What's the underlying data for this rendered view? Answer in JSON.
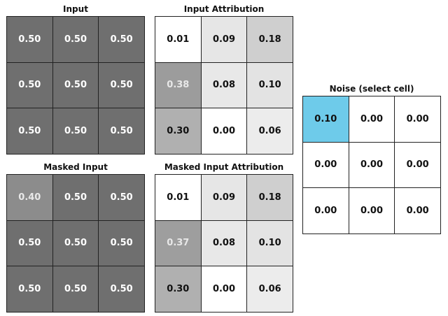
{
  "panels": {
    "input": {
      "title": "Input",
      "cells": [
        {
          "value": "0.50",
          "bg": "#6f6f6f",
          "fg": "#ffffff"
        },
        {
          "value": "0.50",
          "bg": "#6f6f6f",
          "fg": "#ffffff"
        },
        {
          "value": "0.50",
          "bg": "#6f6f6f",
          "fg": "#ffffff"
        },
        {
          "value": "0.50",
          "bg": "#6f6f6f",
          "fg": "#ffffff"
        },
        {
          "value": "0.50",
          "bg": "#6f6f6f",
          "fg": "#ffffff"
        },
        {
          "value": "0.50",
          "bg": "#6f6f6f",
          "fg": "#ffffff"
        },
        {
          "value": "0.50",
          "bg": "#6f6f6f",
          "fg": "#ffffff"
        },
        {
          "value": "0.50",
          "bg": "#6f6f6f",
          "fg": "#ffffff"
        },
        {
          "value": "0.50",
          "bg": "#6f6f6f",
          "fg": "#ffffff"
        }
      ]
    },
    "input_attribution": {
      "title": "Input Attribution",
      "cells": [
        {
          "value": "0.01",
          "bg": "#ffffff",
          "fg": "#111111"
        },
        {
          "value": "0.09",
          "bg": "#e6e6e6",
          "fg": "#111111"
        },
        {
          "value": "0.18",
          "bg": "#cfcfcf",
          "fg": "#111111"
        },
        {
          "value": "0.38",
          "bg": "#9c9c9c",
          "fg": "#e8e8e8"
        },
        {
          "value": "0.08",
          "bg": "#e8e8e8",
          "fg": "#111111"
        },
        {
          "value": "0.10",
          "bg": "#e3e3e3",
          "fg": "#111111"
        },
        {
          "value": "0.30",
          "bg": "#b0b0b0",
          "fg": "#111111"
        },
        {
          "value": "0.00",
          "bg": "#ffffff",
          "fg": "#111111"
        },
        {
          "value": "0.06",
          "bg": "#ececec",
          "fg": "#111111"
        }
      ]
    },
    "masked_input": {
      "title": "Masked Input",
      "cells": [
        {
          "value": "0.40",
          "bg": "#8c8c8c",
          "fg": "#e8e8e8"
        },
        {
          "value": "0.50",
          "bg": "#6f6f6f",
          "fg": "#ffffff"
        },
        {
          "value": "0.50",
          "bg": "#6f6f6f",
          "fg": "#ffffff"
        },
        {
          "value": "0.50",
          "bg": "#6f6f6f",
          "fg": "#ffffff"
        },
        {
          "value": "0.50",
          "bg": "#6f6f6f",
          "fg": "#ffffff"
        },
        {
          "value": "0.50",
          "bg": "#6f6f6f",
          "fg": "#ffffff"
        },
        {
          "value": "0.50",
          "bg": "#6f6f6f",
          "fg": "#ffffff"
        },
        {
          "value": "0.50",
          "bg": "#6f6f6f",
          "fg": "#ffffff"
        },
        {
          "value": "0.50",
          "bg": "#6f6f6f",
          "fg": "#ffffff"
        }
      ]
    },
    "masked_input_attribution": {
      "title": "Masked Input Attribution",
      "cells": [
        {
          "value": "0.01",
          "bg": "#ffffff",
          "fg": "#111111"
        },
        {
          "value": "0.09",
          "bg": "#e6e6e6",
          "fg": "#111111"
        },
        {
          "value": "0.18",
          "bg": "#cfcfcf",
          "fg": "#111111"
        },
        {
          "value": "0.37",
          "bg": "#9e9e9e",
          "fg": "#e8e8e8"
        },
        {
          "value": "0.08",
          "bg": "#e8e8e8",
          "fg": "#111111"
        },
        {
          "value": "0.10",
          "bg": "#e3e3e3",
          "fg": "#111111"
        },
        {
          "value": "0.30",
          "bg": "#b0b0b0",
          "fg": "#111111"
        },
        {
          "value": "0.00",
          "bg": "#ffffff",
          "fg": "#111111"
        },
        {
          "value": "0.06",
          "bg": "#ececec",
          "fg": "#111111"
        }
      ]
    },
    "noise": {
      "title": "Noise (select cell)",
      "cells": [
        {
          "value": "0.10",
          "bg": "#6ecbea",
          "fg": "#111111"
        },
        {
          "value": "0.00",
          "bg": "#ffffff",
          "fg": "#111111"
        },
        {
          "value": "0.00",
          "bg": "#ffffff",
          "fg": "#111111"
        },
        {
          "value": "0.00",
          "bg": "#ffffff",
          "fg": "#111111"
        },
        {
          "value": "0.00",
          "bg": "#ffffff",
          "fg": "#111111"
        },
        {
          "value": "0.00",
          "bg": "#ffffff",
          "fg": "#111111"
        },
        {
          "value": "0.00",
          "bg": "#ffffff",
          "fg": "#111111"
        },
        {
          "value": "0.00",
          "bg": "#ffffff",
          "fg": "#111111"
        },
        {
          "value": "0.00",
          "bg": "#ffffff",
          "fg": "#111111"
        }
      ]
    }
  }
}
